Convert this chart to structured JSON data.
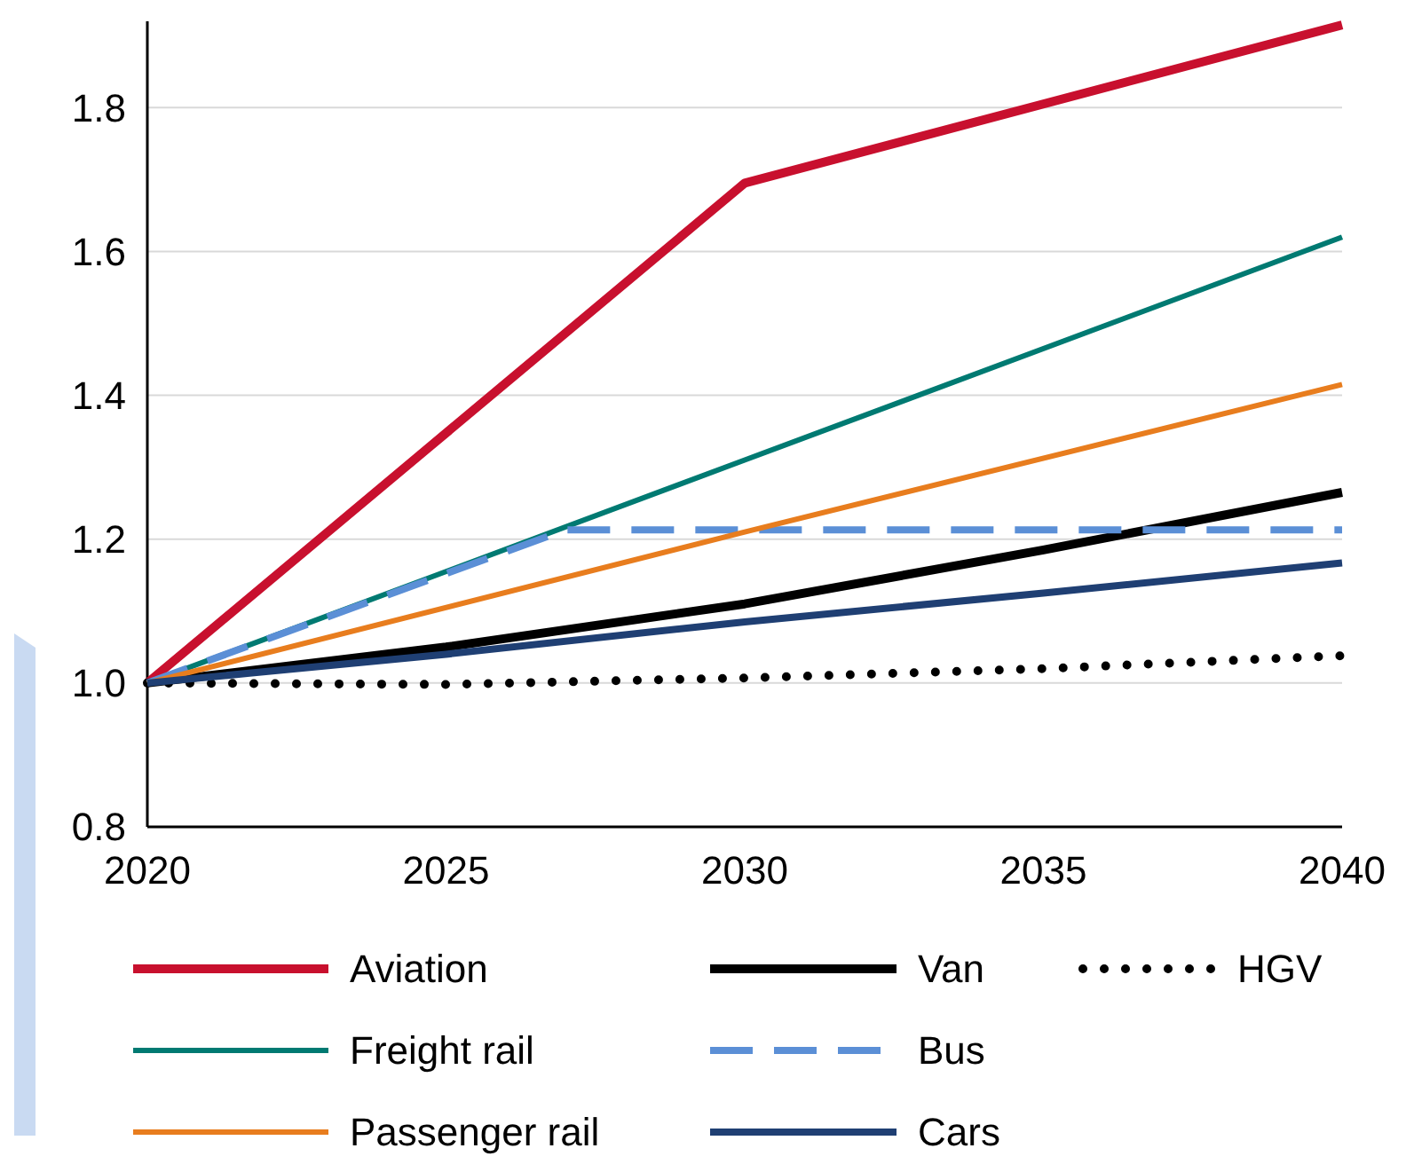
{
  "chart_data": {
    "type": "line",
    "xlim": [
      2020,
      2040
    ],
    "xticks": [
      2020,
      2025,
      2030,
      2035,
      2040
    ],
    "ylim": [
      0.8,
      1.92
    ],
    "yticks": [
      {
        "value": 0.8,
        "label": "0.8"
      },
      {
        "value": 1.0,
        "label": "1.0"
      },
      {
        "value": 1.2,
        "label": "1.2"
      },
      {
        "value": 1.4,
        "label": "1.4"
      },
      {
        "value": 1.6,
        "label": "1.6"
      },
      {
        "value": 1.8,
        "label": "1.8"
      }
    ],
    "grid": "y",
    "legend": "bottom",
    "series": [
      {
        "name": "Aviation",
        "color": "#c8102e",
        "line_style": "solid",
        "x": [
          2020,
          2030,
          2040
        ],
        "values": [
          1.0,
          1.695,
          1.915
        ]
      },
      {
        "name": "Van",
        "color": "#000000",
        "line_style": "solid",
        "x": [
          2020,
          2025,
          2030,
          2035,
          2040
        ],
        "values": [
          1.0,
          1.05,
          1.11,
          1.185,
          1.265
        ]
      },
      {
        "name": "HGV",
        "color": "#000000",
        "line_style": "dotted",
        "x": [
          2020,
          2025,
          2030,
          2035,
          2040
        ],
        "values": [
          1.0,
          0.998,
          1.007,
          1.02,
          1.038
        ]
      },
      {
        "name": "Freight rail",
        "color": "#007a72",
        "line_style": "solid",
        "x": [
          2020,
          2030,
          2040
        ],
        "values": [
          1.0,
          1.31,
          1.62
        ]
      },
      {
        "name": "Bus",
        "color": "#5b8fd6",
        "line_style": "dashed",
        "x": [
          2020,
          2027,
          2040
        ],
        "values": [
          1.0,
          1.213,
          1.213
        ]
      },
      {
        "name": "Passenger rail",
        "color": "#e87d1e",
        "line_style": "solid",
        "x": [
          2020,
          2030,
          2040
        ],
        "values": [
          1.0,
          1.21,
          1.415
        ]
      },
      {
        "name": "Cars",
        "color": "#1f3f73",
        "line_style": "solid",
        "x": [
          2020,
          2025,
          2030,
          2035,
          2040
        ],
        "values": [
          1.0,
          1.04,
          1.085,
          1.125,
          1.167
        ]
      }
    ]
  }
}
